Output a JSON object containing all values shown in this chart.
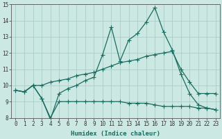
{
  "xlabel": "Humidex (Indice chaleur)",
  "ylabel": "",
  "background_color": "#cce8e3",
  "grid_color": "#aaccc7",
  "line_color": "#1a6b60",
  "x": [
    0,
    1,
    2,
    3,
    4,
    5,
    6,
    7,
    8,
    9,
    10,
    11,
    12,
    13,
    14,
    15,
    16,
    17,
    18,
    19,
    20,
    21,
    22,
    23
  ],
  "y_top": [
    9.7,
    9.6,
    10.0,
    9.2,
    7.9,
    9.5,
    9.8,
    10.0,
    10.3,
    10.5,
    11.9,
    13.6,
    11.5,
    12.8,
    13.2,
    13.9,
    14.8,
    13.3,
    12.2,
    10.7,
    9.5,
    8.8,
    8.6,
    8.5
  ],
  "y_mid": [
    9.7,
    9.6,
    10.0,
    10.0,
    10.2,
    10.3,
    10.4,
    10.6,
    10.7,
    10.8,
    11.0,
    11.2,
    11.4,
    11.5,
    11.6,
    11.8,
    11.9,
    12.0,
    12.1,
    11.0,
    10.2,
    9.5,
    9.5,
    9.5
  ],
  "y_bot": [
    9.7,
    9.6,
    10.0,
    9.2,
    8.0,
    9.0,
    9.0,
    9.0,
    9.0,
    9.0,
    9.0,
    9.0,
    9.0,
    8.9,
    8.9,
    8.9,
    8.8,
    8.7,
    8.7,
    8.7,
    8.7,
    8.6,
    8.6,
    8.5
  ],
  "ylim": [
    8,
    15
  ],
  "xlim": [
    -0.5,
    23.5
  ],
  "yticks": [
    8,
    9,
    10,
    11,
    12,
    13,
    14,
    15
  ],
  "xticks": [
    0,
    1,
    2,
    3,
    4,
    5,
    6,
    7,
    8,
    9,
    10,
    11,
    12,
    13,
    14,
    15,
    16,
    17,
    18,
    19,
    20,
    21,
    22,
    23
  ],
  "tick_fontsize": 5.5,
  "label_fontsize": 6.5
}
